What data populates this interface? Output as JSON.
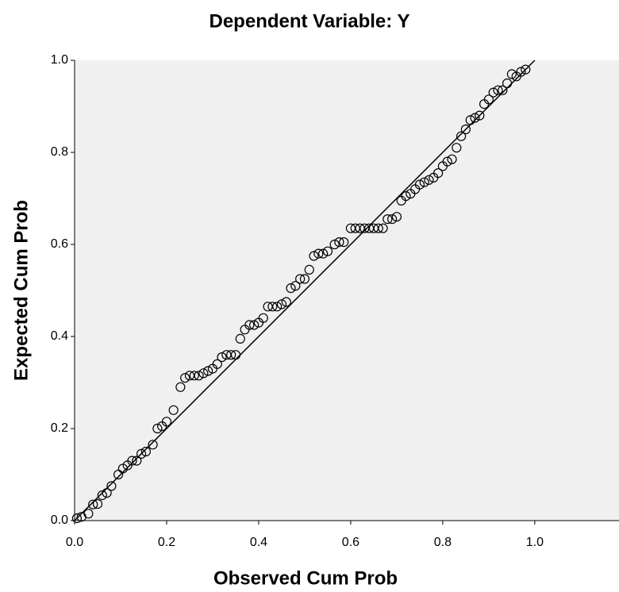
{
  "chart_data": {
    "type": "scatter",
    "title": "Dependent Variable: Y",
    "x_label": "Observed Cum Prob",
    "y_label": "Expected Cum Prob",
    "xlim": [
      0,
      1.183
    ],
    "ylim": [
      0,
      1
    ],
    "xticks": [
      {
        "value": 0,
        "label": "0.0"
      },
      0.2,
      0.4,
      0.6,
      0.8,
      {
        "value": 1,
        "label": "1.0"
      }
    ],
    "yticks": [
      {
        "value": 0,
        "label": "0.0"
      },
      0.2,
      0.4,
      0.6,
      0.8,
      {
        "value": 1,
        "label": "1.0"
      }
    ],
    "marker_color": "#000000",
    "background": "#f0f0f0",
    "diagonal": {
      "x": [
        0,
        1
      ],
      "y": [
        0,
        1
      ]
    },
    "x": [
      0.005,
      0.015,
      0.03,
      0.04,
      0.05,
      0.06,
      0.07,
      0.08,
      0.095,
      0.105,
      0.115,
      0.125,
      0.135,
      0.145,
      0.155,
      0.17,
      0.18,
      0.19,
      0.2,
      0.215,
      0.23,
      0.24,
      0.25,
      0.26,
      0.27,
      0.28,
      0.29,
      0.3,
      0.31,
      0.32,
      0.33,
      0.34,
      0.35,
      0.36,
      0.37,
      0.38,
      0.39,
      0.4,
      0.41,
      0.42,
      0.43,
      0.44,
      0.45,
      0.46,
      0.47,
      0.48,
      0.49,
      0.5,
      0.51,
      0.52,
      0.53,
      0.54,
      0.55,
      0.565,
      0.575,
      0.585,
      0.6,
      0.61,
      0.62,
      0.63,
      0.64,
      0.65,
      0.66,
      0.67,
      0.68,
      0.69,
      0.7,
      0.71,
      0.72,
      0.73,
      0.74,
      0.75,
      0.76,
      0.77,
      0.78,
      0.79,
      0.8,
      0.81,
      0.82,
      0.83,
      0.84,
      0.85,
      0.86,
      0.87,
      0.88,
      0.89,
      0.9,
      0.91,
      0.92,
      0.93,
      0.94,
      0.95,
      0.96,
      0.97,
      0.98
    ],
    "values": [
      0.005,
      0.008,
      0.015,
      0.035,
      0.036,
      0.055,
      0.06,
      0.075,
      0.1,
      0.113,
      0.12,
      0.13,
      0.13,
      0.145,
      0.15,
      0.165,
      0.2,
      0.205,
      0.215,
      0.24,
      0.29,
      0.31,
      0.315,
      0.315,
      0.315,
      0.32,
      0.325,
      0.33,
      0.34,
      0.355,
      0.36,
      0.36,
      0.36,
      0.395,
      0.415,
      0.425,
      0.425,
      0.43,
      0.44,
      0.465,
      0.465,
      0.465,
      0.47,
      0.475,
      0.505,
      0.51,
      0.525,
      0.525,
      0.545,
      0.575,
      0.58,
      0.58,
      0.585,
      0.6,
      0.605,
      0.605,
      0.635,
      0.635,
      0.635,
      0.635,
      0.635,
      0.635,
      0.635,
      0.635,
      0.655,
      0.655,
      0.66,
      0.695,
      0.705,
      0.71,
      0.72,
      0.73,
      0.735,
      0.74,
      0.745,
      0.755,
      0.77,
      0.78,
      0.785,
      0.81,
      0.835,
      0.85,
      0.87,
      0.875,
      0.88,
      0.905,
      0.915,
      0.93,
      0.935,
      0.935,
      0.95,
      0.97,
      0.965,
      0.975,
      0.98
    ]
  }
}
